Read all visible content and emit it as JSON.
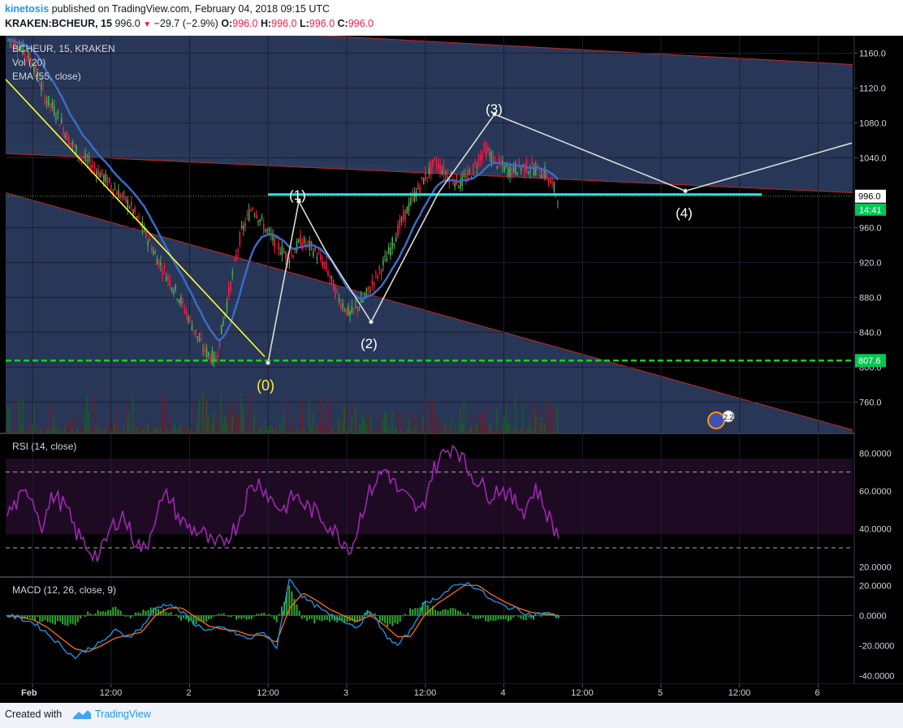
{
  "header": {
    "author": "kinetosis",
    "published": "published on TradingView.com, February 04, 2018 09:15 UTC",
    "symbol": "KRAKEN:BCHEUR, 15",
    "last": "996.0",
    "change": "−29.7 (−2.9%)",
    "o_label": "O:",
    "o_val": "996.0",
    "h_label": "H:",
    "h_val": "996.0",
    "l_label": "L:",
    "l_val": "996.0",
    "c_label": "C:",
    "c_val": "996.0"
  },
  "legends": {
    "main": "BCHEUR, 15, KRAKEN",
    "vol": "Vol (20)",
    "ema": "EMA (55, close)",
    "rsi": "RSI (14, close)",
    "macd": "MACD (12, 26, close, 9)"
  },
  "footer": {
    "created": "Created with",
    "brand": "TradingView"
  },
  "colors": {
    "up": "#26a69a",
    "candle_up": "#4caf50",
    "candle_down": "#ff1744",
    "ema": "#3a6bc4",
    "channel_fill": "#2a3a5c",
    "wave_line": "#d8dcd8",
    "trend_line": "#ffff33",
    "support": "#18d018",
    "resistance": "#23e0e8",
    "rsi": "#9c27b0",
    "macd": "#2196f3",
    "signal": "#ff6d00",
    "hist": "#2ea82e",
    "price_tag_green": "#00c853"
  },
  "chart_data": [
    {
      "type": "candlestick",
      "title": "BCHEUR, 15, KRAKEN",
      "ylim": [
        725,
        1180
      ],
      "y_ticks": [
        "1160.0",
        "1120.0",
        "1080.0",
        "1040.0",
        "960.0",
        "920.0",
        "880.0",
        "840.0",
        "800.0",
        "760.0"
      ],
      "x_ticks": [
        "Feb",
        "12:00",
        "2",
        "12:00",
        "3",
        "12:00",
        "4",
        "12:00",
        "5",
        "12:00",
        "6"
      ],
      "price_tags": [
        {
          "value": 996.0,
          "label": "996.0"
        },
        {
          "value": 807.6,
          "label": "807.6"
        }
      ],
      "countdown": "14:41",
      "wave_labels": [
        "(0)",
        "(1)",
        "(2)",
        "(3)",
        "(4)"
      ],
      "wave_points": [
        {
          "x": "Feb 2 12:00",
          "y": 805
        },
        {
          "x": "Feb 2 ~15:30",
          "y": 990
        },
        {
          "x": "Feb 3 ~08:00",
          "y": 852
        },
        {
          "x": "Feb 3 ~21:00",
          "y": 1090
        },
        {
          "x": "Feb 5 ~09:00",
          "y": 1002
        }
      ],
      "support_level": 807.6,
      "resistance_level": 998,
      "price_path": [
        1175,
        1168,
        1150,
        1110,
        1090,
        1060,
        1040,
        1030,
        1015,
        1000,
        985,
        960,
        930,
        905,
        880,
        850,
        820,
        808,
        880,
        950,
        985,
        960,
        940,
        925,
        945,
        935,
        915,
        880,
        860,
        875,
        900,
        925,
        960,
        990,
        1015,
        1035,
        1020,
        1010,
        1025,
        1050,
        1035,
        1025,
        1030,
        1028,
        1022,
        996
      ],
      "badge": "2.2"
    },
    {
      "type": "bar",
      "title": "Vol (20)"
    },
    {
      "type": "line",
      "title": "RSI (14, close)",
      "ylim": [
        15,
        90
      ],
      "y_ticks": [
        "80.0000",
        "60.0000",
        "40.0000",
        "20.0000"
      ],
      "bands": [
        30,
        70
      ],
      "values": [
        48,
        55,
        60,
        42,
        58,
        52,
        38,
        30,
        25,
        40,
        48,
        35,
        28,
        50,
        58,
        45,
        40,
        38,
        30,
        35,
        42,
        60,
        65,
        55,
        50,
        58,
        52,
        48,
        42,
        35,
        30,
        52,
        65,
        72,
        60,
        55,
        48,
        70,
        80,
        85,
        72,
        65,
        58,
        62,
        55,
        50,
        62,
        48,
        36
      ]
    },
    {
      "type": "line",
      "title": "MACD (12, 26, close, 9)",
      "ylim": [
        -45,
        25
      ],
      "y_ticks": [
        "20.0000",
        "0.0000",
        "-20.0000",
        "-40.0000"
      ],
      "series": [
        {
          "name": "MACD",
          "values": [
            0,
            -2,
            -5,
            -12,
            -20,
            -28,
            -22,
            -18,
            -10,
            -14,
            -8,
            5,
            8,
            2,
            -6,
            -10,
            -8,
            -12,
            -16,
            -10,
            -22,
            25,
            12,
            6,
            0,
            -3,
            -8,
            4,
            -12,
            -20,
            -10,
            8,
            12,
            18,
            22,
            18,
            10,
            6,
            4,
            0,
            2,
            -1
          ]
        },
        {
          "name": "Signal",
          "values": [
            0,
            -1,
            -3,
            -8,
            -15,
            -22,
            -24,
            -20,
            -15,
            -13,
            -11,
            0,
            5,
            5,
            -1,
            -7,
            -9,
            -10,
            -13,
            -13,
            -18,
            5,
            15,
            10,
            4,
            0,
            -4,
            0,
            -6,
            -14,
            -14,
            0,
            8,
            14,
            20,
            20,
            14,
            9,
            5,
            2,
            1,
            0
          ]
        }
      ]
    }
  ]
}
